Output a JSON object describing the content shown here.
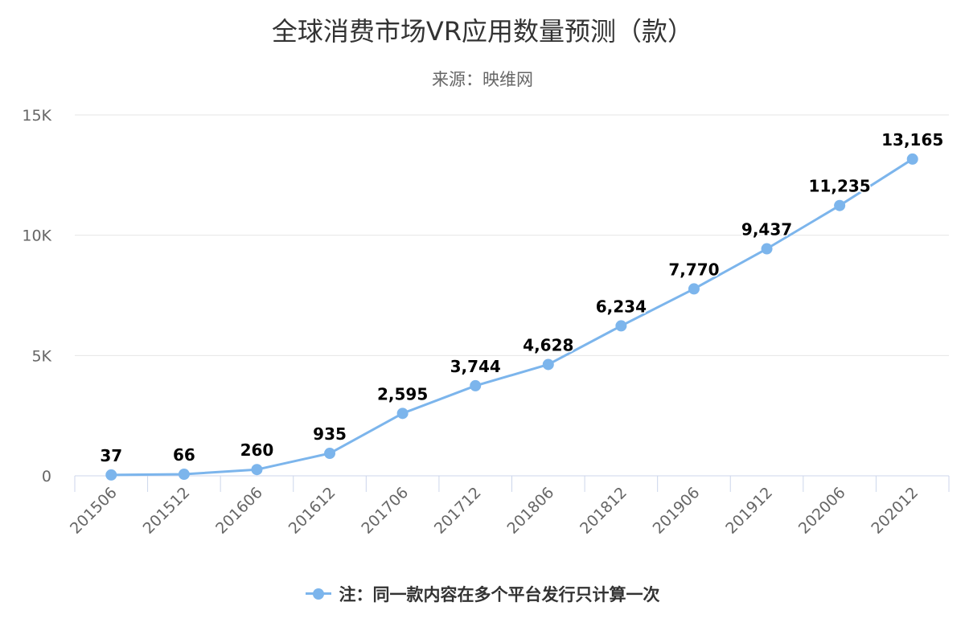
{
  "chart_data": {
    "type": "line",
    "title": "全球消费市场VR应用数量预测（款）",
    "subtitle": "来源：映维网",
    "categories": [
      "201506",
      "201512",
      "201606",
      "201612",
      "201706",
      "201712",
      "201806",
      "201812",
      "201906",
      "201912",
      "202006",
      "202012"
    ],
    "series": [
      {
        "name": "注：同一款内容在多个平台发行只计算一次",
        "values": [
          37,
          66,
          260,
          935,
          2595,
          3744,
          4628,
          6234,
          7770,
          9437,
          11235,
          13165
        ],
        "data_labels": [
          "37",
          "66",
          "260",
          "935",
          "2,595",
          "3,744",
          "4,628",
          "6,234",
          "7,770",
          "9,437",
          "11,235",
          "13,165"
        ],
        "color": "#7cb5ec"
      }
    ],
    "y_ticks": [
      {
        "value": 0,
        "label": "0"
      },
      {
        "value": 5000,
        "label": "5K"
      },
      {
        "value": 10000,
        "label": "10K"
      },
      {
        "value": 15000,
        "label": "15K"
      }
    ],
    "ylim": [
      0,
      15000
    ],
    "xlabel": "",
    "ylabel": "",
    "grid": true,
    "legend_position": "bottom-center",
    "colors": {
      "series": "#7cb5ec",
      "grid": "#e6e6e6",
      "axis": "#ccd6eb",
      "tick_label": "#666666",
      "data_label": "#000000"
    }
  }
}
